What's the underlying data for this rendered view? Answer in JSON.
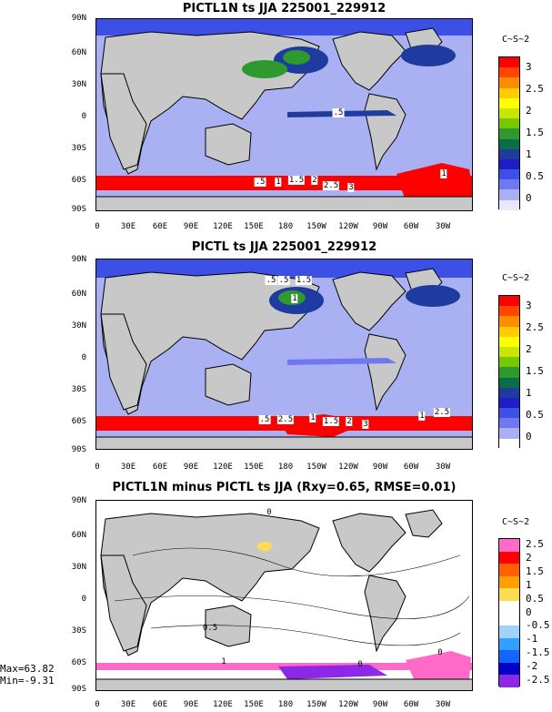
{
  "panels": [
    {
      "title": "PICTL1N ts JJA 225001_229912",
      "units": "C~S~2",
      "colorbar": {
        "colors": [
          "#ff0000",
          "#ff4500",
          "#ff8c00",
          "#ffcc00",
          "#ffff00",
          "#c8e600",
          "#78c800",
          "#2e9a2e",
          "#0a6e4a",
          "#1e3ca0",
          "#1e1ec8",
          "#3c50e6",
          "#6e78f0",
          "#aab1f2",
          "#e8e8ff"
        ],
        "labels": [
          "3",
          "2.5",
          "2",
          "1.5",
          "1",
          "0.5",
          "0"
        ]
      },
      "contour_labels": [
        ".5",
        "1",
        "1.5",
        "2",
        "2.5",
        "3",
        "1",
        ".5"
      ]
    },
    {
      "title": "PICTL ts JJA 225001_229912",
      "units": "C~S~2",
      "colorbar": {
        "colors": [
          "#ff0000",
          "#ff4500",
          "#ff8c00",
          "#ffcc00",
          "#ffff00",
          "#c8e600",
          "#78c800",
          "#2e9a2e",
          "#0a6e4a",
          "#1e3ca0",
          "#1e1ec8",
          "#3c50e6",
          "#6e78f0",
          "#aab1f2",
          "#ffffff"
        ],
        "labels": [
          "3",
          "2.5",
          "2",
          "1.5",
          "1",
          "0.5",
          "0"
        ]
      },
      "contour_labels": [
        ".5",
        "2.5",
        "1",
        "1.5",
        "2",
        "3",
        "1",
        "2.5",
        "1",
        ".5",
        ".5",
        "1.5"
      ]
    },
    {
      "title": "PICTL1N minus PICTL ts JJA (Rxy=0.65, RMSE=0.01)",
      "units": "C~S~2",
      "colorbar": {
        "colors": [
          "#ff69c8",
          "#ff0000",
          "#ff6000",
          "#ffa000",
          "#ffdc50",
          "#ffffff",
          "#ffffff",
          "#a0d2ff",
          "#32a0ff",
          "#1464ff",
          "#0000c8",
          "#8c28e6"
        ],
        "labels": [
          "2.5",
          "2",
          "1.5",
          "1",
          "0.5",
          "0",
          "-0.5",
          "-1",
          "-1.5",
          "-2",
          "-2.5"
        ]
      },
      "contour_labels": [
        "0",
        "0",
        "1",
        "0",
        "0.5"
      ]
    }
  ],
  "axes": {
    "lat_labels": [
      "90N",
      "60N",
      "30N",
      "0",
      "30S",
      "60S",
      "90S"
    ],
    "lon_labels": [
      "0",
      "30E",
      "60E",
      "90E",
      "120E",
      "150E",
      "180",
      "150W",
      "120W",
      "90W",
      "60W",
      "30W"
    ]
  },
  "stats": {
    "max": "Max=63.82",
    "min": "Min=-9.31"
  }
}
